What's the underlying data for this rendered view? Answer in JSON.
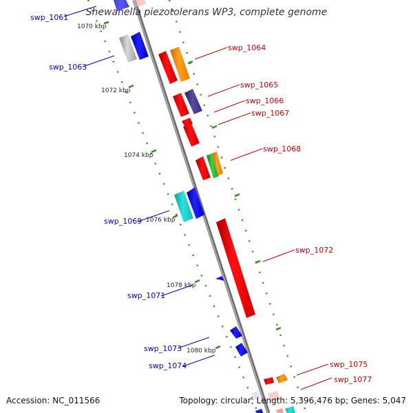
{
  "title": "Shewanella piezotolerans WP3, complete genome",
  "accession": "Accession: NC_011566",
  "summary": "Topology: circular; Length: 5,396,476 bp; Genes: 5,047",
  "colors": {
    "forward_label": "#cc0000",
    "reverse_label": "#0000cc",
    "backbone": "#777777",
    "dots": "#2e8b20"
  },
  "scale": [
    {
      "label": "1070 kbp"
    },
    {
      "label": "1072 kbp"
    },
    {
      "label": "1074 kbp"
    },
    {
      "label": "1076 kbp"
    },
    {
      "label": "1078 kbp"
    },
    {
      "label": "1080 kbp"
    }
  ],
  "genes": [
    {
      "label": "swp_1061",
      "strand": "reverse"
    },
    {
      "label": "swp_1063",
      "strand": "reverse"
    },
    {
      "label": "swp_1064",
      "strand": "forward"
    },
    {
      "label": "swp_1065",
      "strand": "forward"
    },
    {
      "label": "swp_1066",
      "strand": "forward"
    },
    {
      "label": "swp_1067",
      "strand": "forward"
    },
    {
      "label": "swp_1068",
      "strand": "forward"
    },
    {
      "label": "swp_1069",
      "strand": "reverse"
    },
    {
      "label": "swp_1072",
      "strand": "forward"
    },
    {
      "label": "swp_1071",
      "strand": "reverse"
    },
    {
      "label": "swp_1073",
      "strand": "reverse"
    },
    {
      "label": "swp_1074",
      "strand": "reverse"
    },
    {
      "label": "swp_1075",
      "strand": "forward"
    },
    {
      "label": "swp_1077",
      "strand": "forward"
    }
  ]
}
